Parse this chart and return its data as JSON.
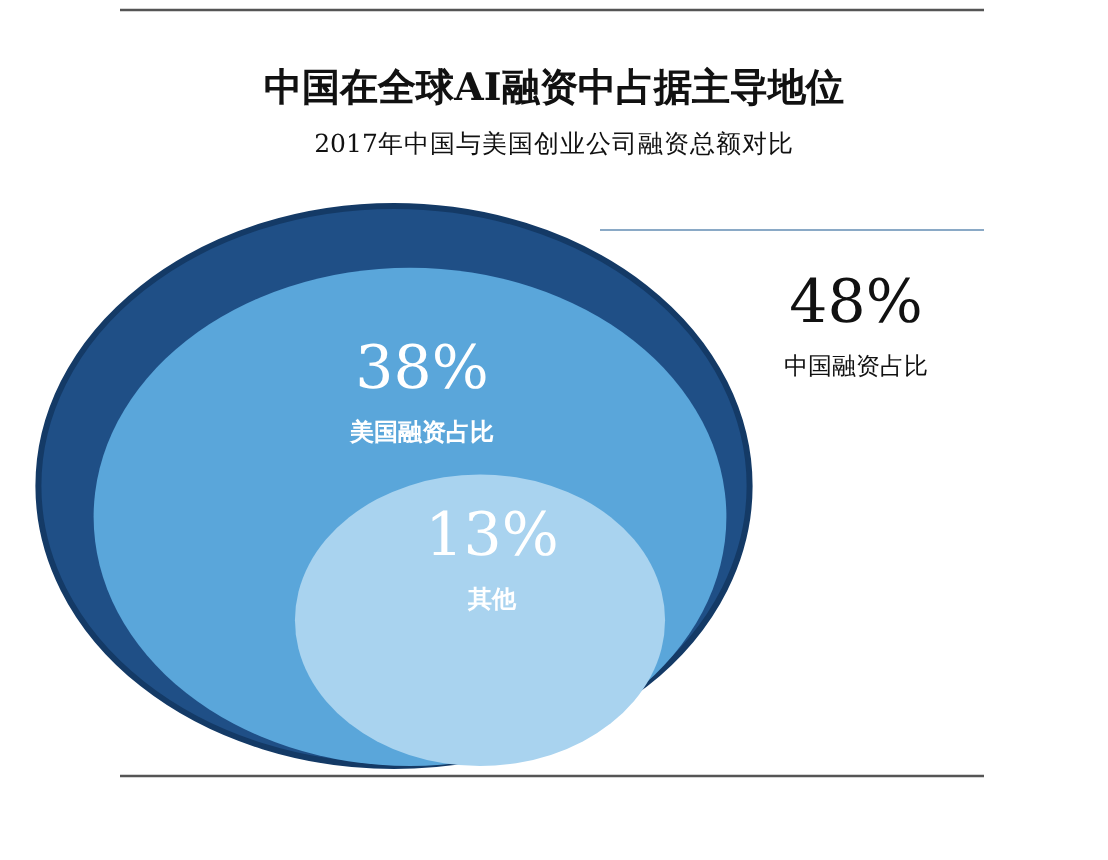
{
  "chart_data": {
    "type": "other",
    "title": "中国在全球AI融资中占据主导地位",
    "subtitle": "2017年中国与美国创业公司融资总额对比",
    "categories": [
      "中国融资占比",
      "美国融资占比",
      "其他"
    ],
    "values": [
      48,
      38,
      13
    ],
    "value_labels": [
      "48%",
      "38%",
      "13%"
    ],
    "colors": [
      "#1f4f86",
      "#5aa6da",
      "#a9d3ef"
    ]
  }
}
